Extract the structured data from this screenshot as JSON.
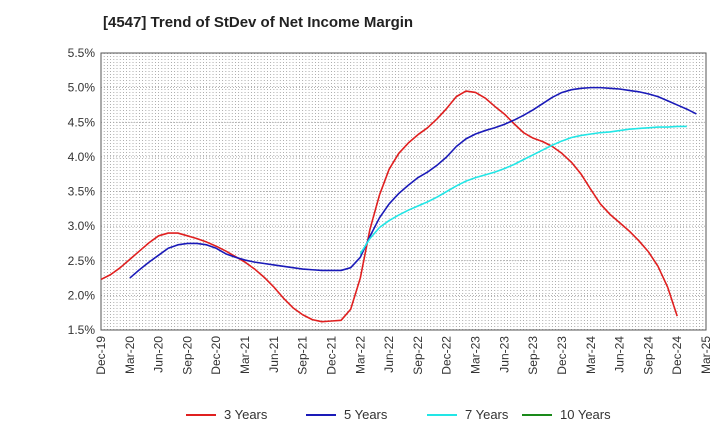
{
  "chart_data": {
    "type": "line",
    "title": "[4547]  Trend of StDev of Net Income Margin",
    "xlabel": "",
    "ylabel": "",
    "x_tick_labels": [
      "Dec-19",
      "Mar-20",
      "Jun-20",
      "Sep-20",
      "Dec-20",
      "Mar-21",
      "Jun-21",
      "Sep-21",
      "Dec-21",
      "Mar-22",
      "Jun-22",
      "Sep-22",
      "Dec-22",
      "Mar-23",
      "Jun-23",
      "Sep-23",
      "Dec-23",
      "Mar-24",
      "Jun-24",
      "Sep-24",
      "Dec-24",
      "Mar-25"
    ],
    "y_tick_labels": [
      "5.5%",
      "5.0%",
      "4.5%",
      "4.0%",
      "3.5%",
      "3.0%",
      "2.5%",
      "2.0%",
      "1.5%"
    ],
    "ylim": [
      1.5,
      5.5
    ],
    "y_unit": "%",
    "grid": true,
    "legend_position": "bottom",
    "series": [
      {
        "name": "3 Years",
        "color": "#e02020",
        "start_index": 0,
        "values": [
          2.23,
          2.3,
          2.4,
          2.52,
          2.64,
          2.76,
          2.86,
          2.9,
          2.9,
          2.86,
          2.82,
          2.77,
          2.71,
          2.64,
          2.56,
          2.48,
          2.38,
          2.26,
          2.12,
          1.96,
          1.82,
          1.72,
          1.65,
          1.62,
          1.63,
          1.64,
          1.8,
          2.25,
          2.95,
          3.45,
          3.82,
          4.05,
          4.2,
          4.32,
          4.42,
          4.55,
          4.7,
          4.87,
          4.95,
          4.93,
          4.85,
          4.73,
          4.62,
          4.48,
          4.35,
          4.27,
          4.22,
          4.15,
          4.05,
          3.92,
          3.75,
          3.53,
          3.32,
          3.17,
          3.05,
          2.93,
          2.79,
          2.63,
          2.42,
          2.12,
          1.7
        ]
      },
      {
        "name": "5 Years",
        "color": "#1a1ab8",
        "start_index": 3,
        "values": [
          2.25,
          2.37,
          2.48,
          2.58,
          2.68,
          2.73,
          2.75,
          2.75,
          2.73,
          2.68,
          2.6,
          2.55,
          2.51,
          2.48,
          2.46,
          2.44,
          2.42,
          2.4,
          2.38,
          2.37,
          2.36,
          2.36,
          2.36,
          2.4,
          2.55,
          2.85,
          3.12,
          3.32,
          3.47,
          3.59,
          3.7,
          3.78,
          3.88,
          4.0,
          4.15,
          4.26,
          4.33,
          4.38,
          4.42,
          4.47,
          4.53,
          4.6,
          4.68,
          4.77,
          4.86,
          4.93,
          4.97,
          4.99,
          5.0,
          5.0,
          4.99,
          4.98,
          4.96,
          4.94,
          4.91,
          4.87,
          4.81,
          4.75,
          4.69,
          4.62
        ]
      },
      {
        "name": "7 Years",
        "color": "#22e6e6",
        "start_index": 27,
        "values": [
          2.6,
          2.82,
          2.98,
          3.08,
          3.16,
          3.23,
          3.29,
          3.35,
          3.42,
          3.5,
          3.58,
          3.65,
          3.7,
          3.74,
          3.78,
          3.83,
          3.89,
          3.96,
          4.03,
          4.1,
          4.17,
          4.23,
          4.28,
          4.31,
          4.33,
          4.35,
          4.36,
          4.38,
          4.4,
          4.41,
          4.42,
          4.43,
          4.43,
          4.44,
          4.44
        ]
      },
      {
        "name": "10 Years",
        "color": "#1a8a1a",
        "start_index": 0,
        "values": []
      }
    ]
  }
}
